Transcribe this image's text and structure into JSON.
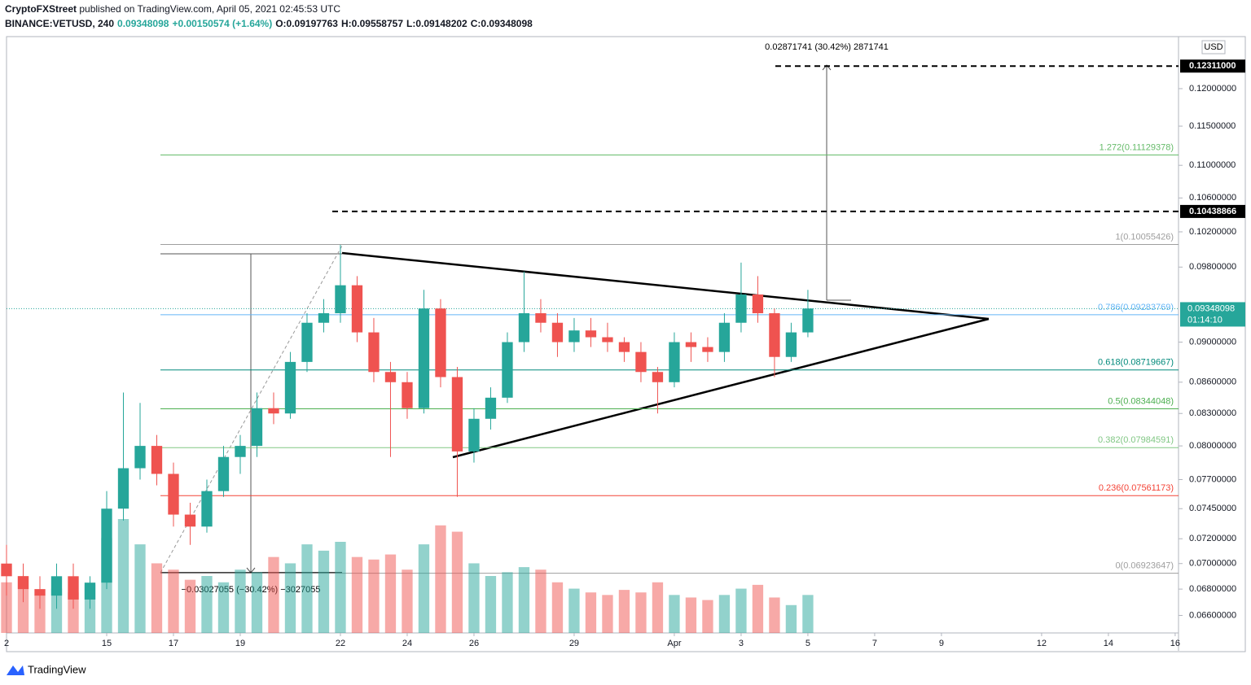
{
  "header": {
    "publisher": "CryptoFXStreet",
    "published": "published on TradingView.com, April 05, 2021 02:45:53 UTC",
    "symbol": "BINANCE:VETUSD, 240",
    "price": "0.09348098",
    "change": "+0.00150574 (+1.64%)",
    "open": "O:0.09197763",
    "high": "H:0.09558757",
    "low": "L:0.09148202",
    "close": "C:0.09348098"
  },
  "footer": {
    "brand": "TradingView"
  },
  "chart_data": {
    "type": "candlestick",
    "currency": "USD",
    "log_scale": true,
    "xlim": [
      12,
      47.1
    ],
    "ylim": [
      0.0647,
      0.1273
    ],
    "xticks": [
      {
        "value": 12,
        "label": "2"
      },
      15,
      17,
      19,
      22,
      24,
      26,
      29,
      {
        "value": 32,
        "label": "Apr"
      },
      {
        "value": 34,
        "label": "3"
      },
      {
        "value": 36,
        "label": "5"
      },
      {
        "value": 38,
        "label": "7"
      },
      {
        "value": 40,
        "label": "9"
      },
      {
        "value": 43,
        "label": "12"
      },
      {
        "value": 45,
        "label": "14"
      },
      {
        "value": 47,
        "label": "16"
      }
    ],
    "yticks": [
      {
        "value": 0.066,
        "label": "0.06600000"
      },
      {
        "value": 0.068,
        "label": "0.06800000"
      },
      {
        "value": 0.07,
        "label": "0.07000000"
      },
      {
        "value": 0.072,
        "label": "0.07200000"
      },
      {
        "value": 0.0745,
        "label": "0.07450000"
      },
      {
        "value": 0.077,
        "label": "0.07700000"
      },
      {
        "value": 0.08,
        "label": "0.08000000"
      },
      {
        "value": 0.083,
        "label": "0.08300000"
      },
      {
        "value": 0.086,
        "label": "0.08600000"
      },
      {
        "value": 0.09,
        "label": "0.09000000"
      },
      {
        "value": 0.098,
        "label": "0.09800000"
      },
      {
        "value": 0.102,
        "label": "0.10200000"
      },
      {
        "value": 0.106,
        "label": "0.10600000"
      },
      {
        "value": 0.11,
        "label": "0.11000000"
      },
      {
        "value": 0.115,
        "label": "0.11500000"
      },
      {
        "value": 0.12,
        "label": "0.12000000"
      }
    ],
    "up_color": "#26a69a",
    "down_color": "#ef5350",
    "x": [
      12,
      12.5,
      13,
      13.5,
      14,
      14.5,
      15,
      15.5,
      16,
      16.5,
      17,
      17.5,
      18,
      18.5,
      19,
      19.5,
      20,
      20.5,
      21,
      21.5,
      22,
      22.5,
      23,
      23.5,
      24,
      24.5,
      25,
      25.5,
      26,
      26.5,
      27,
      27.5,
      28,
      28.5,
      29,
      29.5,
      30,
      30.5,
      31,
      31.5,
      32,
      32.5,
      33,
      33.5,
      34,
      34.5,
      35,
      35.5,
      36
    ],
    "open": [
      0.07,
      0.069,
      0.068,
      0.0675,
      0.069,
      0.0672,
      0.0685,
      0.0745,
      0.078,
      0.08,
      0.0775,
      0.074,
      0.073,
      0.076,
      0.079,
      0.08,
      0.0835,
      0.083,
      0.088,
      0.092,
      0.093,
      0.096,
      0.091,
      0.087,
      0.086,
      0.0835,
      0.0935,
      0.0865,
      0.0795,
      0.0825,
      0.0845,
      0.09,
      0.093,
      0.092,
      0.09,
      0.0912,
      0.0905,
      0.09,
      0.089,
      0.087,
      0.086,
      0.09,
      0.0895,
      0.089,
      0.092,
      0.095,
      0.093,
      0.0885,
      0.091
    ],
    "high": [
      0.0715,
      0.07,
      0.069,
      0.07,
      0.07,
      0.069,
      0.076,
      0.085,
      0.084,
      0.081,
      0.0785,
      0.075,
      0.077,
      0.08,
      0.081,
      0.085,
      0.085,
      0.089,
      0.093,
      0.0945,
      0.1005,
      0.097,
      0.0925,
      0.088,
      0.087,
      0.0955,
      0.0945,
      0.0875,
      0.0835,
      0.0855,
      0.091,
      0.0975,
      0.0945,
      0.093,
      0.0925,
      0.0925,
      0.092,
      0.0905,
      0.09,
      0.0875,
      0.091,
      0.091,
      0.0905,
      0.093,
      0.0985,
      0.097,
      0.0935,
      0.092,
      0.0955
    ],
    "low": [
      0.0675,
      0.067,
      0.0665,
      0.0665,
      0.0665,
      0.0665,
      0.068,
      0.0735,
      0.077,
      0.0765,
      0.073,
      0.0715,
      0.0725,
      0.0755,
      0.0775,
      0.079,
      0.082,
      0.0825,
      0.087,
      0.091,
      0.092,
      0.09,
      0.086,
      0.079,
      0.0825,
      0.083,
      0.0855,
      0.0755,
      0.0785,
      0.0815,
      0.084,
      0.089,
      0.091,
      0.0885,
      0.089,
      0.0895,
      0.089,
      0.088,
      0.086,
      0.083,
      0.0855,
      0.088,
      0.088,
      0.088,
      0.091,
      0.092,
      0.0865,
      0.088,
      0.0905
    ],
    "close": [
      0.069,
      0.068,
      0.0675,
      0.069,
      0.0672,
      0.0685,
      0.0745,
      0.078,
      0.08,
      0.0775,
      0.074,
      0.073,
      0.076,
      0.079,
      0.08,
      0.0835,
      0.083,
      0.088,
      0.092,
      0.093,
      0.096,
      0.091,
      0.087,
      0.086,
      0.0835,
      0.0935,
      0.0865,
      0.0795,
      0.0825,
      0.0845,
      0.09,
      0.093,
      0.092,
      0.09,
      0.0912,
      0.0905,
      0.09,
      0.089,
      0.087,
      0.086,
      0.09,
      0.0895,
      0.089,
      0.092,
      0.095,
      0.093,
      0.0885,
      0.091,
      0.0935
    ],
    "volume": [
      40,
      45,
      30,
      35,
      32,
      38,
      75,
      90,
      70,
      55,
      50,
      42,
      45,
      40,
      50,
      48,
      60,
      55,
      70,
      65,
      72,
      60,
      58,
      62,
      50,
      70,
      85,
      80,
      55,
      45,
      48,
      52,
      50,
      40,
      35,
      32,
      30,
      34,
      32,
      40,
      30,
      28,
      26,
      30,
      35,
      38,
      28,
      22,
      30
    ],
    "fib_levels": [
      {
        "label": "1.272(0.11129378)",
        "value": 0.11129378,
        "color": "#66bb6a"
      },
      {
        "label": "1(0.10055426)",
        "value": 0.10055426,
        "color": "#9e9e9e"
      },
      {
        "label": "0.786(0.09283769)",
        "value": 0.09283769,
        "color": "#64b5f6"
      },
      {
        "label": "0.618(0.08719667)",
        "value": 0.08719667,
        "color": "#00897b"
      },
      {
        "label": "0.5(0.08344048)",
        "value": 0.08344048,
        "color": "#4caf50"
      },
      {
        "label": "0.382(0.07984591)",
        "value": 0.07984591,
        "color": "#81c784"
      },
      {
        "label": "0.236(0.07561173)",
        "value": 0.07561173,
        "color": "#f44336"
      },
      {
        "label": "0(0.06923647)",
        "value": 0.06923647,
        "color": "#9e9e9e"
      }
    ],
    "targets": [
      {
        "value": 0.12311,
        "label": "0.12311000"
      },
      {
        "value": 0.10438866,
        "label": "0.10438866"
      }
    ],
    "last_price": {
      "value": 0.09348098,
      "label": "0.09348098",
      "countdown": "01:14:10"
    },
    "annotations": [
      "0.02871741 (30.42%) 2871741",
      "−0.03027055 (−30.42%) −3027055"
    ]
  }
}
